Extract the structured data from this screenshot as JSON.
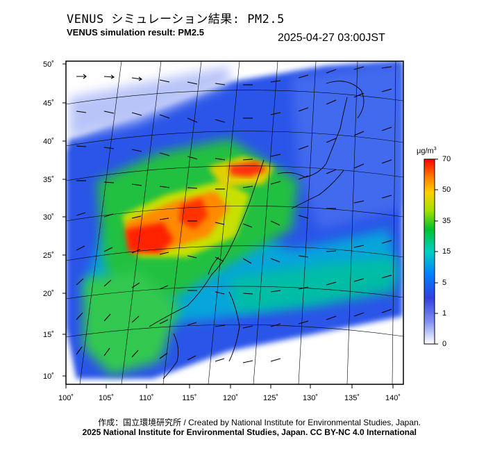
{
  "title_ja": "VENUS シミュレーション結果: PM2.5",
  "title_en": "VENUS simulation result: PM2.5",
  "timestamp": "2025-04-27 03:00JST",
  "lat_labels": [
    "50˚",
    "45˚",
    "40˚",
    "35˚",
    "30˚",
    "25˚",
    "20˚",
    "15˚",
    "10˚"
  ],
  "lon_labels": [
    "100˚",
    "105˚",
    "110˚",
    "115˚",
    "120˚",
    "125˚",
    "130˚",
    "135˚",
    "140˚"
  ],
  "colorbar": {
    "unit": "μg/m",
    "unit_sup": "3",
    "ticks": [
      "70",
      "50",
      "35",
      "15",
      "5",
      "1",
      "0"
    ],
    "colors": [
      "#ff0000",
      "#ff8000",
      "#ffd000",
      "#a0e000",
      "#00c030",
      "#00d0c0",
      "#0080ff",
      "#3040e0",
      "#8090f0",
      "#ffffff"
    ]
  },
  "credit_line1": "作成：国立環境研究所 / Created by National Institute for Environmental Studies, Japan.",
  "credit_line2": "2025 National Institute for Environmental Studies, Japan. CC BY-NC 4.0 International"
}
